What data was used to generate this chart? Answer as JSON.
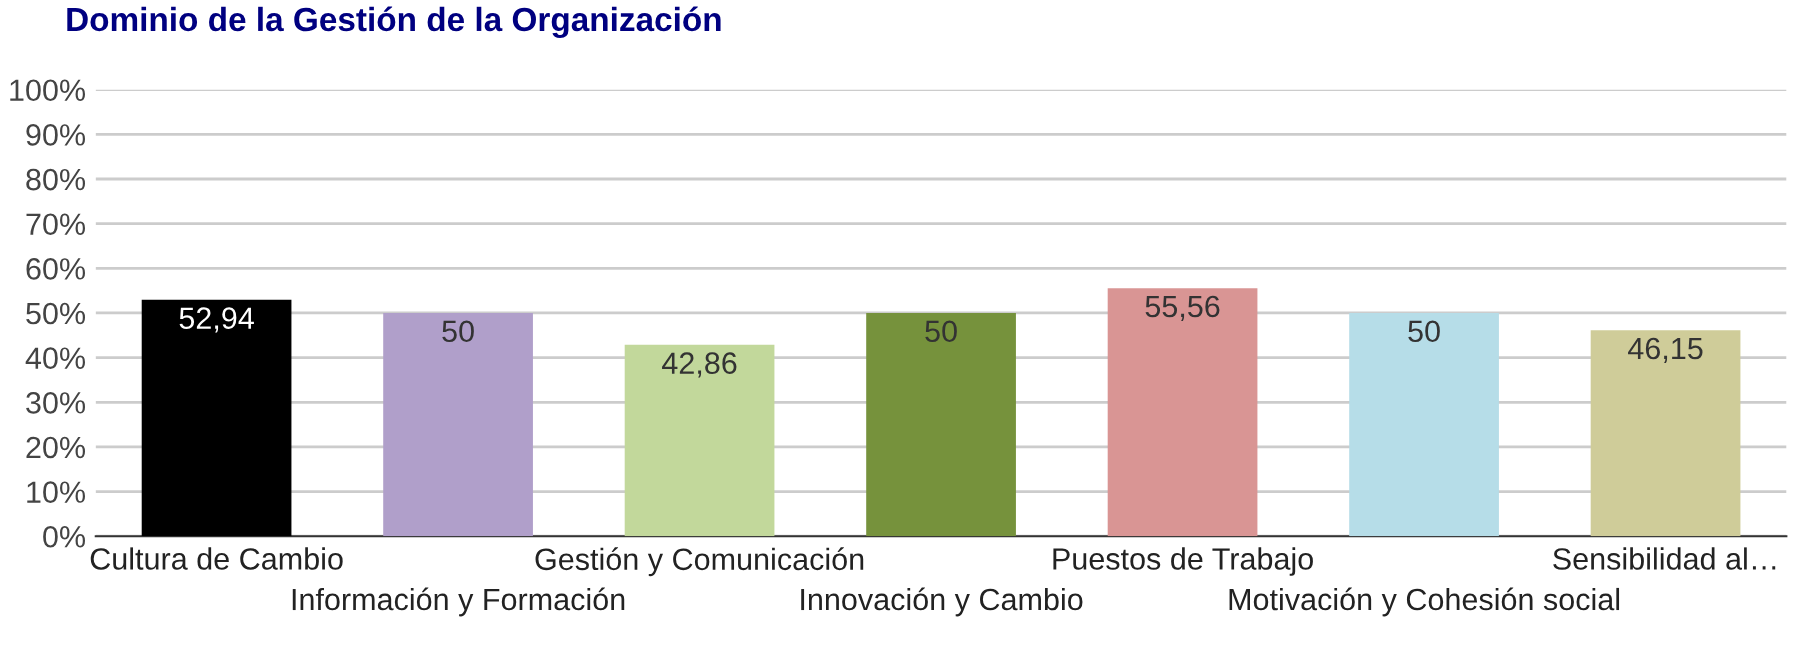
{
  "chart_data": {
    "type": "bar",
    "title": "Dominio de la Gestión de la Organización",
    "categories": [
      "Cultura de Cambio",
      "Información y Formación",
      "Gestión y Comunicación",
      "Innovación y Cambio",
      "Puestos de Trabajo",
      "Motivación y Cohesión social",
      "Sensibilidad al…"
    ],
    "values": [
      52.94,
      50,
      42.86,
      50,
      55.56,
      50,
      46.15
    ],
    "value_labels": [
      "52,94",
      "50",
      "42,86",
      "50",
      "55,56",
      "50",
      "46,15"
    ],
    "colors": [
      "#000000",
      "#b09fca",
      "#c2d89b",
      "#76923c",
      "#d99594",
      "#b6dde8",
      "#cfcc99"
    ],
    "ylim": [
      0,
      100
    ],
    "yticks": [
      {
        "value": 0,
        "label": "0%"
      },
      {
        "value": 10,
        "label": "10%"
      },
      {
        "value": 20,
        "label": "20%"
      },
      {
        "value": 30,
        "label": "30%"
      },
      {
        "value": 40,
        "label": "40%"
      },
      {
        "value": 50,
        "label": "50%"
      },
      {
        "value": 60,
        "label": "60%"
      },
      {
        "value": 70,
        "label": "70%"
      },
      {
        "value": 80,
        "label": "80%"
      },
      {
        "value": 90,
        "label": "90%"
      },
      {
        "value": 100,
        "label": "100%"
      }
    ],
    "grid": "y"
  }
}
